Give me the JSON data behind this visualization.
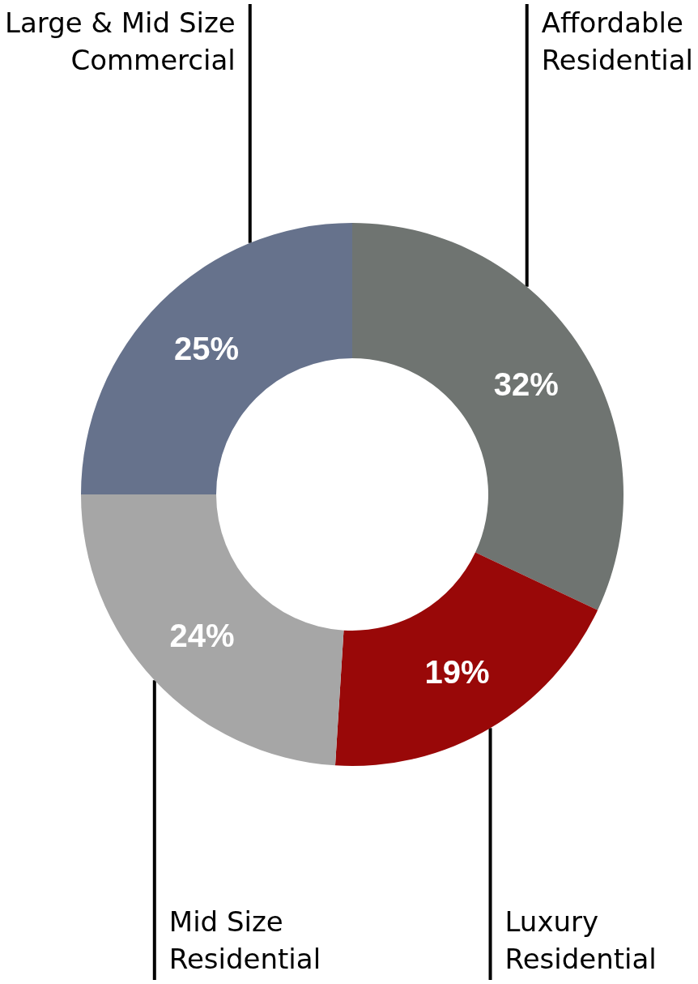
{
  "chart_data": {
    "type": "donut",
    "categories": [
      "Affordable\nResidential",
      "Luxury\nResidential",
      "Mid Size\nResidential",
      "Large & Mid Size\nCommercial"
    ],
    "values": [
      32,
      19,
      24,
      25
    ],
    "value_labels": [
      "32%",
      "19%",
      "24%",
      "25%"
    ],
    "colors": [
      "#6f7471",
      "#990808",
      "#a6a6a6",
      "#66728c"
    ]
  }
}
